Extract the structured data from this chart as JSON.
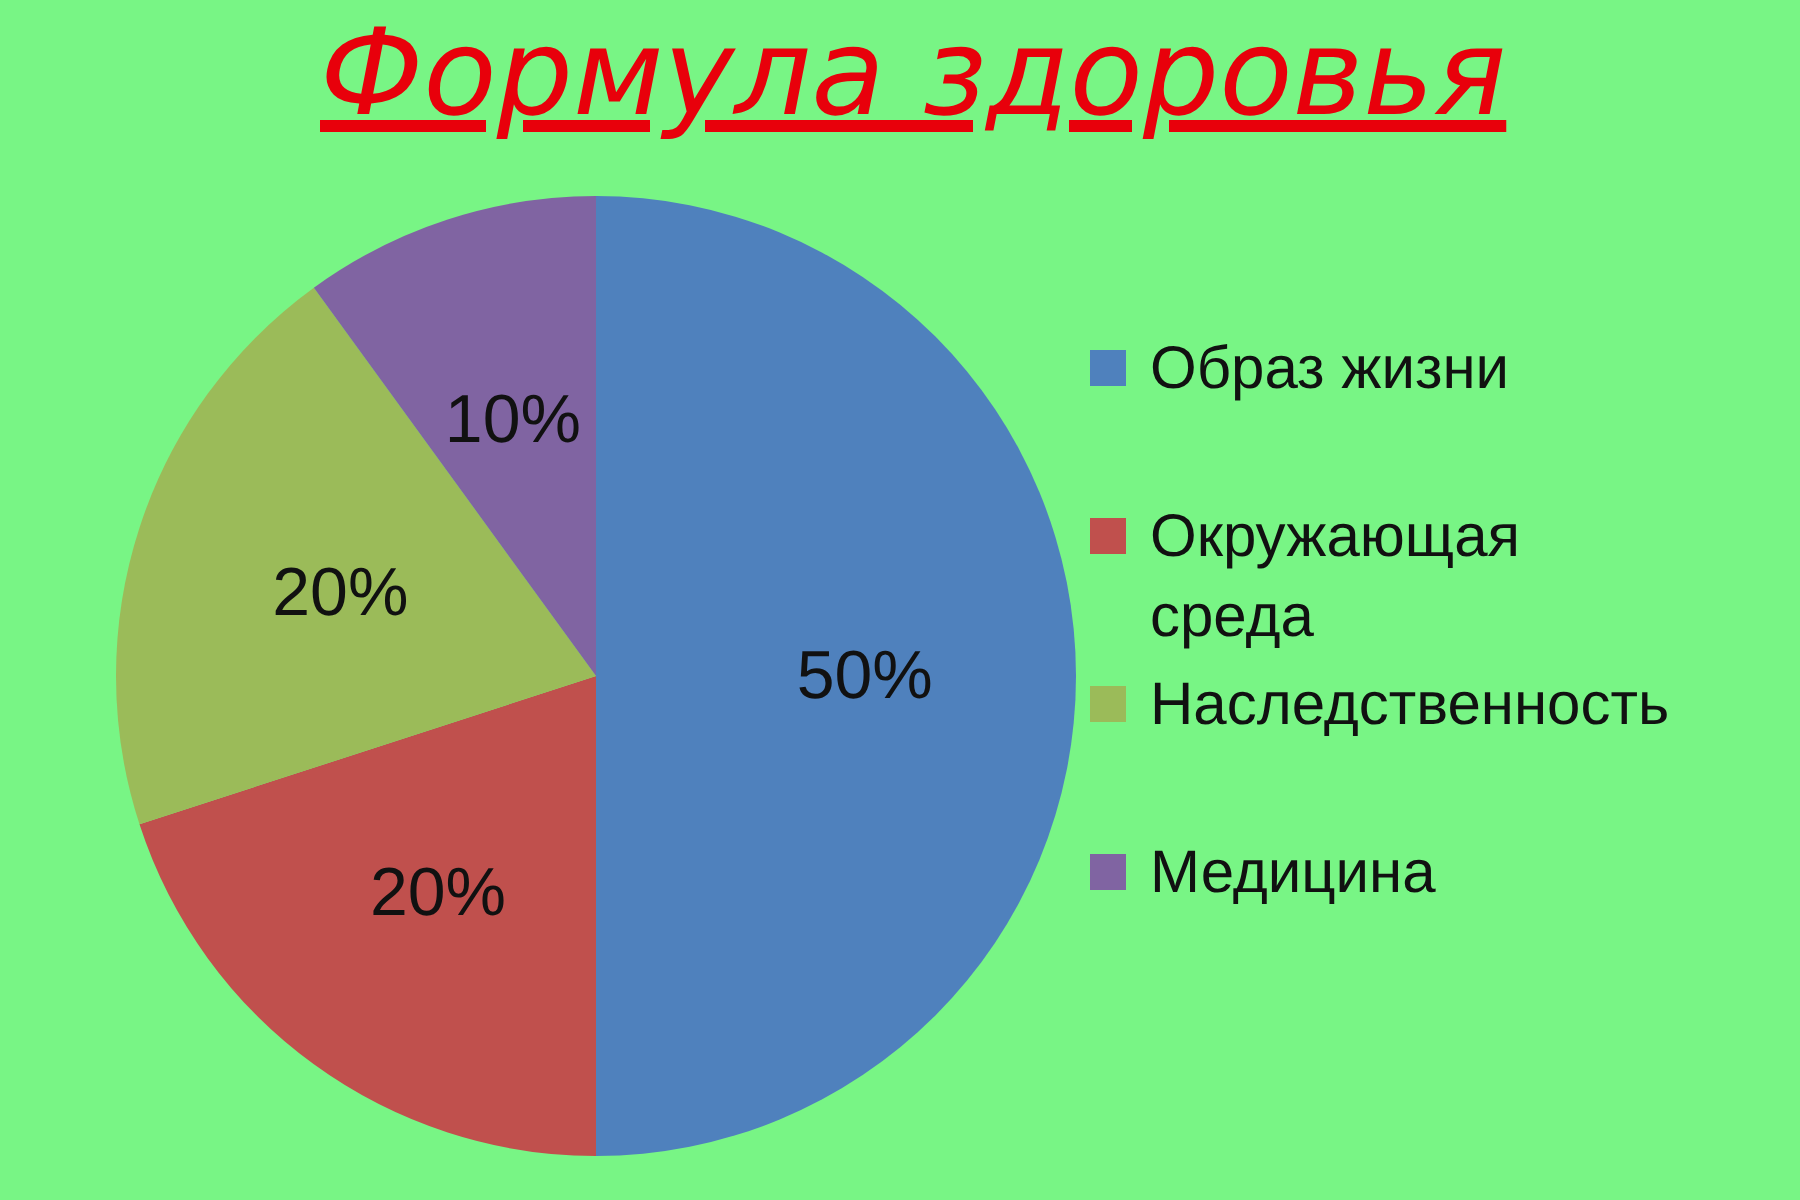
{
  "chart_data": {
    "type": "pie",
    "title": "Формула здоровья",
    "categories": [
      "Образ жизни",
      "Окружающая среда",
      "Наследственность",
      "Медицина"
    ],
    "values": [
      50,
      20,
      20,
      10
    ],
    "value_labels": [
      "50%",
      "20%",
      "20%",
      "10%"
    ],
    "colors": [
      "#4f81bd",
      "#c0504d",
      "#9bbb59",
      "#8064a2"
    ],
    "legend": "right"
  }
}
